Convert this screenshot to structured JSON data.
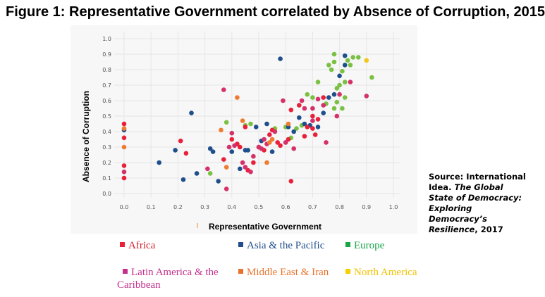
{
  "chart_data": {
    "type": "scatter",
    "title": "Figure 1: Representative Government correlated by Absence of Corruption, 2015",
    "xlabel": "Representative Government",
    "ylabel": "Absence of Corruption",
    "xlim": [
      0.0,
      1.0
    ],
    "ylim": [
      0.0,
      1.0
    ],
    "xticks": [
      "0.0",
      "0.1",
      "0.2",
      "0.3",
      "0.4",
      "0.5",
      "0.6",
      "0.7",
      "0.8",
      "0.9",
      "1.0"
    ],
    "yticks": [
      "0.0",
      "0.1",
      "0.2",
      "0.3",
      "0.4",
      "0.5",
      "0.6",
      "0.7",
      "0.8",
      "0.9",
      "1.0"
    ],
    "grid": true,
    "legend_position": "bottom",
    "series": [
      {
        "name": "Africa",
        "color": "#e8203a",
        "points": [
          [
            0.0,
            0.45
          ],
          [
            0.0,
            0.36
          ],
          [
            0.0,
            0.1
          ],
          [
            0.0,
            0.18
          ],
          [
            0.21,
            0.34
          ],
          [
            0.23,
            0.26
          ],
          [
            0.37,
            0.22
          ],
          [
            0.4,
            0.35
          ],
          [
            0.42,
            0.32
          ],
          [
            0.43,
            0.3
          ],
          [
            0.45,
            0.43
          ],
          [
            0.46,
            0.15
          ],
          [
            0.48,
            0.2
          ],
          [
            0.5,
            0.3
          ],
          [
            0.52,
            0.28
          ],
          [
            0.54,
            0.38
          ],
          [
            0.55,
            0.41
          ],
          [
            0.57,
            0.33
          ],
          [
            0.58,
            0.31
          ],
          [
            0.6,
            0.33
          ],
          [
            0.61,
            0.35
          ],
          [
            0.62,
            0.08
          ],
          [
            0.62,
            0.54
          ],
          [
            0.65,
            0.57
          ],
          [
            0.67,
            0.37
          ],
          [
            0.68,
            0.43
          ],
          [
            0.7,
            0.42
          ],
          [
            0.7,
            0.5
          ],
          [
            0.71,
            0.38
          ],
          [
            0.72,
            0.48
          ],
          [
            0.74,
            0.62
          ]
        ]
      },
      {
        "name": "Asia & the Pacific",
        "color": "#1f4e8c",
        "points": [
          [
            0.0,
            0.41
          ],
          [
            0.13,
            0.2
          ],
          [
            0.19,
            0.28
          ],
          [
            0.22,
            0.09
          ],
          [
            0.25,
            0.52
          ],
          [
            0.27,
            0.13
          ],
          [
            0.32,
            0.29
          ],
          [
            0.33,
            0.27
          ],
          [
            0.35,
            0.08
          ],
          [
            0.4,
            0.27
          ],
          [
            0.43,
            0.16
          ],
          [
            0.45,
            0.28
          ],
          [
            0.46,
            0.28
          ],
          [
            0.49,
            0.43
          ],
          [
            0.51,
            0.34
          ],
          [
            0.53,
            0.45
          ],
          [
            0.55,
            0.27
          ],
          [
            0.58,
            0.87
          ],
          [
            0.61,
            0.43
          ],
          [
            0.63,
            0.4
          ],
          [
            0.65,
            0.49
          ],
          [
            0.67,
            0.45
          ],
          [
            0.69,
            0.44
          ],
          [
            0.72,
            0.43
          ],
          [
            0.74,
            0.52
          ],
          [
            0.76,
            0.62
          ],
          [
            0.78,
            0.64
          ],
          [
            0.8,
            0.76
          ],
          [
            0.82,
            0.89
          ],
          [
            0.82,
            0.83
          ]
        ]
      },
      {
        "name": "Europe",
        "color": "#7ac143",
        "points": [
          [
            0.32,
            0.13
          ],
          [
            0.38,
            0.46
          ],
          [
            0.45,
            0.44
          ],
          [
            0.47,
            0.45
          ],
          [
            0.56,
            0.42
          ],
          [
            0.6,
            0.43
          ],
          [
            0.62,
            0.36
          ],
          [
            0.64,
            0.42
          ],
          [
            0.66,
            0.44
          ],
          [
            0.68,
            0.64
          ],
          [
            0.7,
            0.62
          ],
          [
            0.72,
            0.72
          ],
          [
            0.75,
            0.58
          ],
          [
            0.76,
            0.83
          ],
          [
            0.77,
            0.8
          ],
          [
            0.78,
            0.85
          ],
          [
            0.78,
            0.9
          ],
          [
            0.79,
            0.68
          ],
          [
            0.8,
            0.7
          ],
          [
            0.81,
            0.79
          ],
          [
            0.82,
            0.72
          ],
          [
            0.82,
            0.62
          ],
          [
            0.83,
            0.86
          ],
          [
            0.84,
            0.83
          ],
          [
            0.85,
            0.88
          ],
          [
            0.87,
            0.88
          ],
          [
            0.92,
            0.75
          ],
          [
            0.79,
            0.59
          ],
          [
            0.81,
            0.55
          ],
          [
            0.78,
            0.55
          ]
        ]
      },
      {
        "name": "Latin America & the Caribbean",
        "color": "#d6306a",
        "points": [
          [
            0.0,
            0.14
          ],
          [
            0.31,
            0.16
          ],
          [
            0.37,
            0.67
          ],
          [
            0.38,
            0.03
          ],
          [
            0.39,
            0.3
          ],
          [
            0.4,
            0.39
          ],
          [
            0.41,
            0.31
          ],
          [
            0.44,
            0.2
          ],
          [
            0.45,
            0.17
          ],
          [
            0.47,
            0.14
          ],
          [
            0.48,
            0.24
          ],
          [
            0.5,
            0.3
          ],
          [
            0.51,
            0.29
          ],
          [
            0.52,
            0.35
          ],
          [
            0.53,
            0.32
          ],
          [
            0.59,
            0.6
          ],
          [
            0.6,
            0.33
          ],
          [
            0.63,
            0.29
          ],
          [
            0.66,
            0.6
          ],
          [
            0.67,
            0.55
          ],
          [
            0.7,
            0.47
          ],
          [
            0.7,
            0.55
          ],
          [
            0.72,
            0.61
          ],
          [
            0.74,
            0.57
          ],
          [
            0.79,
            0.5
          ],
          [
            0.8,
            0.64
          ],
          [
            0.84,
            0.72
          ],
          [
            0.9,
            0.63
          ],
          [
            0.75,
            0.33
          ],
          [
            0.56,
            0.4
          ]
        ]
      },
      {
        "name": "Middle East & Iran",
        "color": "#ee7d31",
        "points": [
          [
            0.0,
            0.3
          ],
          [
            0.0,
            0.42
          ],
          [
            0.36,
            0.41
          ],
          [
            0.38,
            0.17
          ],
          [
            0.42,
            0.62
          ],
          [
            0.44,
            0.47
          ],
          [
            0.53,
            0.2
          ],
          [
            0.54,
            0.33
          ],
          [
            0.55,
            0.35
          ],
          [
            0.61,
            0.45
          ]
        ]
      },
      {
        "name": "North America",
        "color": "#f5c518",
        "points": [
          [
            0.9,
            0.86
          ]
        ]
      }
    ]
  },
  "source": {
    "label": "Source: International Idea.",
    "italic": "The Global State of Democracy: Exploring Democracy’s Resilience",
    "tail": ", 2017"
  },
  "legend": [
    {
      "label": "Africa",
      "swatch": "#e8203a",
      "text_color": "#d3222f"
    },
    {
      "label": "Asia & the Pacific",
      "swatch": "#1f4e8c",
      "text_color": "#1f4e8c"
    },
    {
      "label": "Europe",
      "swatch": "#1aa548",
      "text_color": "#1aa548"
    },
    {
      "label": "Latin America & the Caribbean",
      "swatch": "#c2308c",
      "text_color": "#c2308c"
    },
    {
      "label": "Middle East & Iran",
      "swatch": "#e8722c",
      "text_color": "#e8722c"
    },
    {
      "label": "North America",
      "swatch": "#f5d000",
      "text_color": "#f2c200"
    }
  ]
}
